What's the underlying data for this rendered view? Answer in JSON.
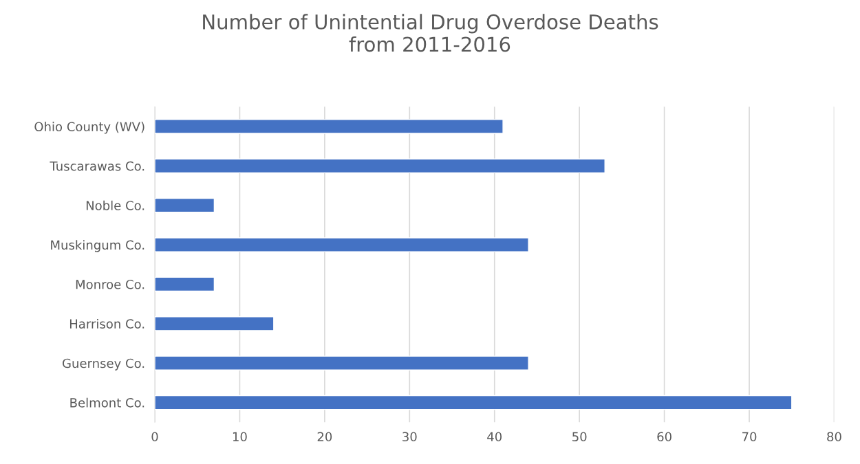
{
  "chart_data": {
    "type": "bar",
    "orientation": "horizontal",
    "title": "Number of Unintential Drug Overdose Deaths\nfrom 2011-2016",
    "categories": [
      "Ohio County (WV)",
      "Tuscarawas Co.",
      "Noble Co.",
      "Muskingum Co.",
      "Monroe Co.",
      "Harrison Co.",
      "Guernsey Co.",
      "Belmont Co."
    ],
    "values": [
      41,
      53,
      7,
      44,
      7,
      14,
      44,
      75
    ],
    "color": "#4472c4",
    "xlim": [
      0,
      80
    ],
    "xticks": [
      0,
      10,
      20,
      30,
      40,
      50,
      60,
      70,
      80
    ],
    "grid": "x",
    "legend": false
  }
}
